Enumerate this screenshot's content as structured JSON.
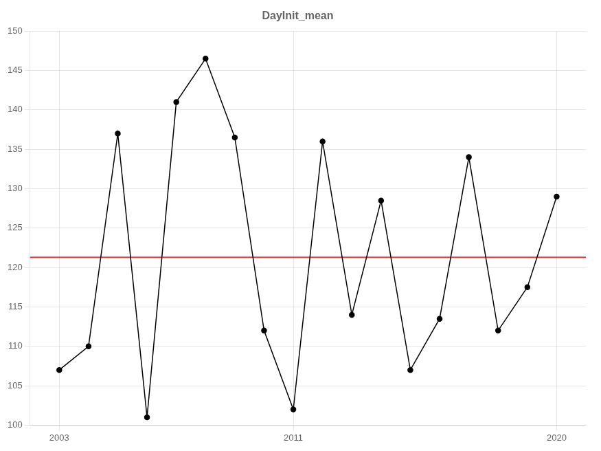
{
  "chart_data": {
    "type": "line",
    "title": "DayInit_mean",
    "x": [
      2003,
      2004,
      2005,
      2006,
      2007,
      2008,
      2009,
      2010,
      2011,
      2012,
      2013,
      2014,
      2015,
      2016,
      2017,
      2018,
      2019,
      2020
    ],
    "series": [
      {
        "color": "#000000",
        "marker": "circle",
        "line_style": "solid",
        "values": [
          107,
          110,
          137,
          101,
          141,
          146.5,
          136.5,
          112,
          102,
          136,
          114,
          128.5,
          107,
          113.5,
          134,
          112,
          117.5,
          129
        ]
      },
      {
        "color": "#ff3333",
        "line_style": "solid",
        "x": [
          2002.0,
          2021.0
        ],
        "values": [
          121.3,
          121.3
        ]
      }
    ],
    "xlim": [
      2002.0,
      2021.0
    ],
    "xticks": [
      2003,
      2011,
      2020
    ],
    "ylim": [
      100,
      150
    ],
    "yticks": [
      100,
      105,
      110,
      115,
      120,
      125,
      130,
      135,
      140,
      145,
      150
    ],
    "grid": true
  }
}
